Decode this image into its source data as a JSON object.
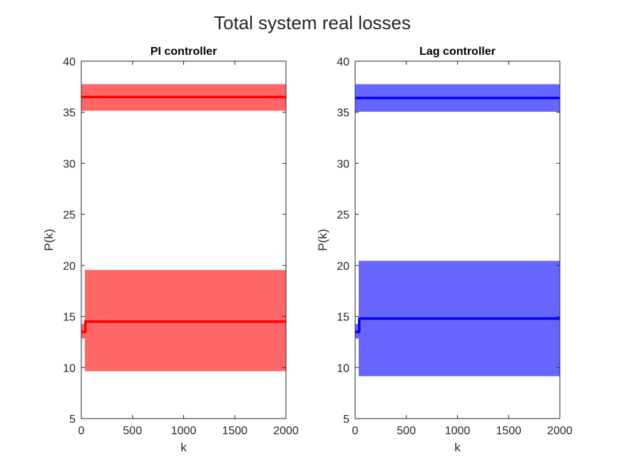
{
  "figure": {
    "title": "Total system real losses"
  },
  "chart_data": [
    {
      "type": "line",
      "title": "PI controller",
      "xlabel": "k",
      "ylabel": "P(k)",
      "xlim": [
        0,
        2000
      ],
      "ylim": [
        5,
        40
      ],
      "xticks": [
        "0",
        "500",
        "1000",
        "1500",
        "2000"
      ],
      "yticks": [
        "5",
        "10",
        "15",
        "20",
        "25",
        "30",
        "35",
        "40"
      ],
      "grid": false,
      "color": "#ff0000",
      "band_color": "#ff6666",
      "series": [
        {
          "role": "upper",
          "x": [
            0,
            2000
          ],
          "mean": [
            36.5,
            36.5
          ],
          "band_low": [
            35.2,
            35.2
          ],
          "band_high": [
            37.7,
            37.7
          ]
        },
        {
          "role": "lower",
          "x": [
            0,
            40,
            40,
            2000
          ],
          "mean": [
            13.5,
            13.5,
            14.5,
            14.5
          ],
          "band_low": [
            12.9,
            12.9,
            9.7,
            9.7
          ],
          "band_high": [
            14.2,
            14.2,
            19.5,
            19.5
          ]
        }
      ]
    },
    {
      "type": "line",
      "title": "Lag controller",
      "xlabel": "k",
      "ylabel": "P(k)",
      "xlim": [
        0,
        2000
      ],
      "ylim": [
        5,
        40
      ],
      "xticks": [
        "0",
        "500",
        "1000",
        "1500",
        "2000"
      ],
      "yticks": [
        "5",
        "10",
        "15",
        "20",
        "25",
        "30",
        "35",
        "40"
      ],
      "grid": false,
      "color": "#0000ff",
      "band_color": "#6666ff",
      "series": [
        {
          "role": "upper",
          "x": [
            0,
            2000
          ],
          "mean": [
            36.4,
            36.4
          ],
          "band_low": [
            35.1,
            35.1
          ],
          "band_high": [
            37.7,
            37.7
          ]
        },
        {
          "role": "lower",
          "x": [
            0,
            40,
            40,
            2000
          ],
          "mean": [
            13.5,
            13.5,
            14.8,
            14.8
          ],
          "band_low": [
            12.9,
            12.9,
            9.2,
            9.2
          ],
          "band_high": [
            14.2,
            14.2,
            20.4,
            20.4
          ]
        }
      ]
    }
  ]
}
